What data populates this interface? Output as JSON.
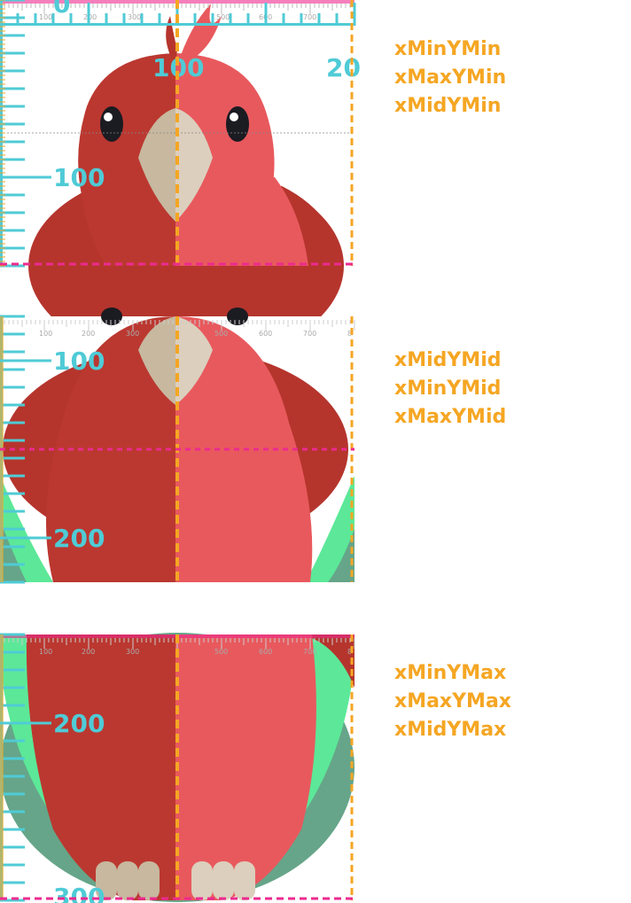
{
  "colors": {
    "ruler": "#4fcbd6",
    "label": "#f5a623",
    "guide_orange": "#f5a623",
    "guide_pink": "#ec2a8f",
    "wing_dark": "#b5352d",
    "body_dark": "#bb3830",
    "body_light": "#e8595d",
    "beak_dark": "#c7b89f",
    "beak_light": "#dccfbd",
    "tail_green": "#5ce898",
    "tail_shadow": "#66a589",
    "feet": "#d1c3ac"
  },
  "panels": [
    {
      "name": "panel-top",
      "labels": [
        "xMinYMin",
        "xMaxYMin",
        "xMidYMin"
      ],
      "big_ticks": [
        "0",
        "100",
        "20",
        "100"
      ],
      "small_ticks": [
        "100",
        "200",
        "300",
        "400",
        "500",
        "600",
        "700"
      ]
    },
    {
      "name": "panel-middle",
      "labels": [
        "xMidYMid",
        "xMinYMid",
        "xMaxYMid"
      ],
      "big_ticks": [
        "100",
        "200"
      ],
      "small_ticks": [
        "100",
        "200",
        "300",
        "400",
        "500",
        "600",
        "700",
        "8"
      ]
    },
    {
      "name": "panel-bottom",
      "labels": [
        "xMinYMax",
        "xMaxYMax",
        "xMidYMax"
      ],
      "big_ticks": [
        "200",
        "300"
      ],
      "small_ticks": [
        "100",
        "200",
        "300",
        "400",
        "500",
        "600",
        "700",
        "8"
      ]
    }
  ]
}
